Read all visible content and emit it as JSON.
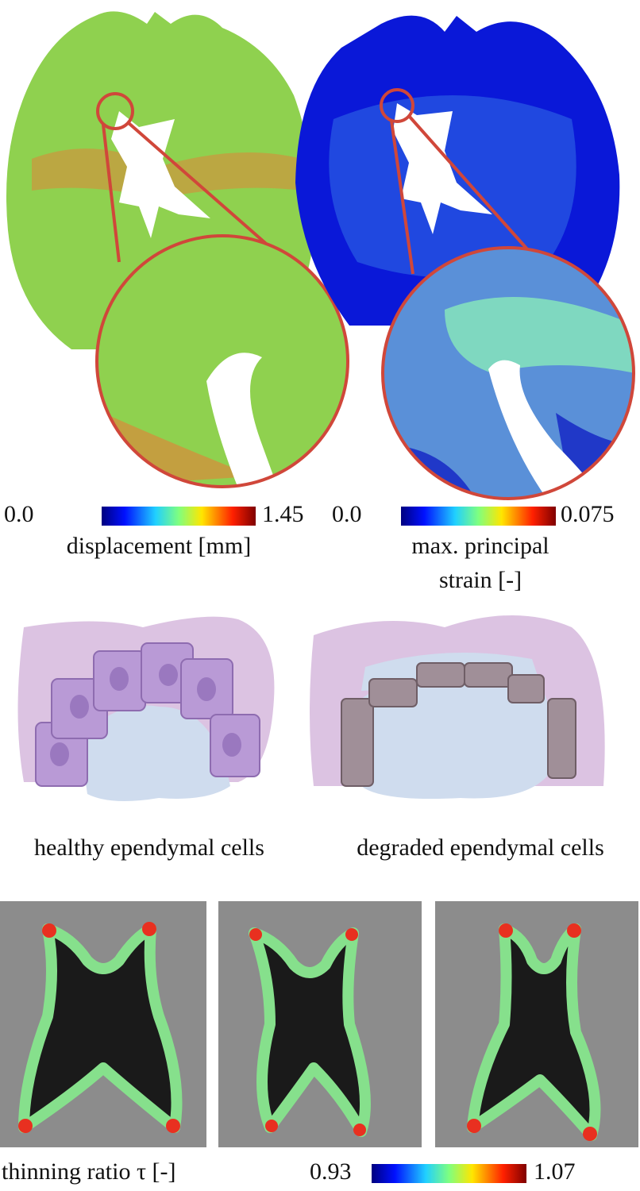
{
  "colorbars": [
    {
      "min": "0.0",
      "max": "1.45",
      "label": "displacement [mm]"
    },
    {
      "min": "0.0",
      "max": "0.075",
      "label_lines": [
        "max. principal",
        "strain [-]"
      ]
    }
  ],
  "cells": {
    "healthy": "healthy ependymal cells",
    "degraded": "degraded ependymal cells"
  },
  "mri": {
    "label": "thinning ratio τ [-]",
    "min": "0.93",
    "max": "1.07"
  }
}
